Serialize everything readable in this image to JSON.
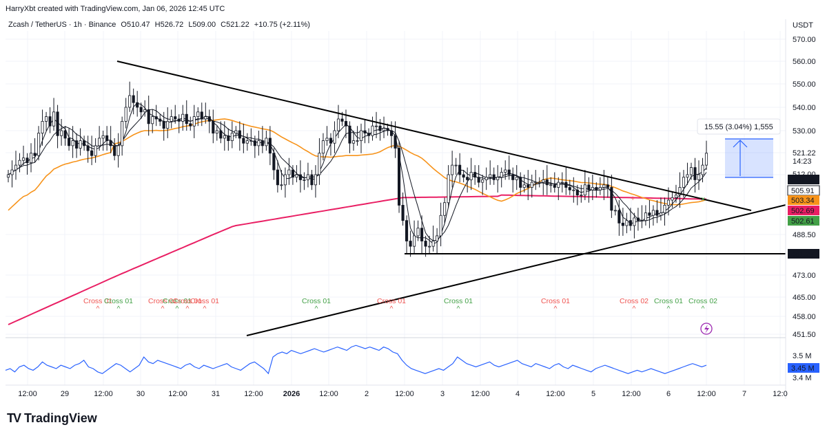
{
  "header": {
    "credit": "HarryXbt created with TradingView.com, Jan 06, 2026 12:45 UTC",
    "symbol": "Zcash / TetherUS · 1h · Binance",
    "open": "O510.47",
    "high": "H526.72",
    "low": "L509.00",
    "close": "C521.22",
    "change": "+10.75 (+2.11%)"
  },
  "brand": {
    "name": "TradingView",
    "logo": "TV"
  },
  "colors": {
    "up": "#131722",
    "down": "#131722",
    "ma_fast": "#131722",
    "ma_mid": "#f7931a",
    "ma_slow": "#e91e63",
    "volume": "#2962ff",
    "cross_down": "#ef5350",
    "cross_up": "#43a047",
    "measure": "#2962ff"
  },
  "chart_data": {
    "type": "candlestick",
    "currency_label": "USDT",
    "y_ticks": [
      "570.00",
      "560.00",
      "550.00",
      "540.00",
      "530.00",
      "521.22",
      "512.00",
      "488.50",
      "473.00",
      "465.00",
      "458.00",
      "451.50"
    ],
    "ylim": [
      450,
      574
    ],
    "x_ticks": [
      "12:00",
      "29",
      "12:00",
      "30",
      "12:00",
      "31",
      "12:00",
      "2026",
      "12:00",
      "2",
      "12:00",
      "3",
      "12:00",
      "4",
      "12:00",
      "5",
      "12:00",
      "6",
      "12:00",
      "7",
      "12:0"
    ],
    "price_labels": [
      {
        "value": "510.04",
        "color": "#131722"
      },
      {
        "value": "505.91",
        "color": "#ffffff"
      },
      {
        "value": "503.34",
        "color": "#f7931a"
      },
      {
        "value": "502.69",
        "color": "#e91e63"
      },
      {
        "value": "502.61",
        "color": "#43a047"
      }
    ],
    "countdown": "14:23",
    "horizontal_level": "481.27",
    "measure_label": "15.55 (3.04%) 1,555",
    "cross_labels": [
      {
        "text": "Cross 01",
        "color": "down"
      },
      {
        "text": "Cross 01",
        "color": "up"
      },
      {
        "text": "Cross 01",
        "color": "down"
      },
      {
        "text": "Cross 01",
        "color": "up"
      },
      {
        "text": "Cross 01",
        "color": "down"
      },
      {
        "text": "Cross 01",
        "color": "down"
      },
      {
        "text": "Cross 01",
        "color": "up"
      },
      {
        "text": "Cross 01",
        "color": "down"
      },
      {
        "text": "Cross 01",
        "color": "up"
      },
      {
        "text": "Cross 01",
        "color": "down"
      },
      {
        "text": "Cross 02",
        "color": "down"
      },
      {
        "text": "Cross 01",
        "color": "up"
      },
      {
        "text": "Cross 02",
        "color": "up"
      }
    ],
    "close_series": [
      512,
      514,
      516,
      518,
      519,
      517,
      521,
      520,
      529,
      534,
      536,
      532,
      538,
      528,
      530,
      527,
      524,
      526,
      523,
      526,
      524,
      522,
      520,
      524,
      527,
      528,
      526,
      524,
      520,
      524,
      534,
      540,
      545,
      542,
      540,
      538,
      539,
      533,
      536,
      535,
      534,
      531,
      534,
      536,
      535,
      534,
      537,
      533,
      532,
      536,
      538,
      535,
      536,
      534,
      529,
      530,
      527,
      528,
      526,
      529,
      530,
      527,
      525,
      526,
      526,
      524,
      526,
      524,
      527,
      521,
      514,
      508,
      508,
      512,
      514,
      511,
      512,
      510,
      510,
      512,
      508,
      512,
      521,
      526,
      527,
      525,
      530,
      535,
      534,
      532,
      525,
      526,
      526,
      530,
      529,
      528,
      532,
      532,
      530,
      531,
      530,
      528,
      523,
      500,
      494,
      486,
      484,
      488,
      491,
      486,
      484,
      484,
      486,
      488,
      496,
      501,
      512,
      516,
      516,
      512,
      511,
      510,
      513,
      511,
      509,
      510,
      511,
      512,
      510,
      511,
      513,
      514,
      512,
      510,
      511,
      507,
      508,
      507,
      509,
      509,
      509,
      510,
      508,
      508,
      507,
      509,
      509,
      507,
      506,
      506,
      504,
      504,
      508,
      506,
      507,
      506,
      507,
      508,
      507,
      498,
      498,
      493,
      492,
      494,
      492,
      495,
      494,
      494,
      497,
      496,
      498,
      496,
      497,
      500,
      502,
      503,
      504,
      507,
      511,
      512,
      515,
      510,
      512,
      516,
      521
    ],
    "volume_series": [
      3.42,
      3.43,
      3.41,
      3.44,
      3.45,
      3.43,
      3.42,
      3.44,
      3.47,
      3.45,
      3.44,
      3.43,
      3.45,
      3.44,
      3.43,
      3.45,
      3.46,
      3.48,
      3.44,
      3.43,
      3.41,
      3.4,
      3.42,
      3.44,
      3.46,
      3.45,
      3.43,
      3.41,
      3.43,
      3.45,
      3.5,
      3.47,
      3.46,
      3.48,
      3.47,
      3.46,
      3.45,
      3.44,
      3.43,
      3.45,
      3.46,
      3.44,
      3.43,
      3.45,
      3.44,
      3.43,
      3.44,
      3.45,
      3.46,
      3.44,
      3.43,
      3.42,
      3.44,
      3.46,
      3.47,
      3.45,
      3.43,
      3.4,
      3.5,
      3.52,
      3.53,
      3.52,
      3.54,
      3.53,
      3.52,
      3.53,
      3.54,
      3.55,
      3.54,
      3.53,
      3.54,
      3.55,
      3.56,
      3.55,
      3.54,
      3.56,
      3.57,
      3.56,
      3.55,
      3.56,
      3.55,
      3.54,
      3.56,
      3.55,
      3.53,
      3.52,
      3.48,
      3.45,
      3.43,
      3.42,
      3.41,
      3.4,
      3.41,
      3.42,
      3.43,
      3.42,
      3.44,
      3.46,
      3.5,
      3.48,
      3.46,
      3.45,
      3.44,
      3.45,
      3.46,
      3.47,
      3.45,
      3.44,
      3.45,
      3.46,
      3.47,
      3.48,
      3.46,
      3.45,
      3.44,
      3.46,
      3.45,
      3.44,
      3.43,
      3.45,
      3.46,
      3.44,
      3.43,
      3.45,
      3.44,
      3.43,
      3.42,
      3.41,
      3.43,
      3.44,
      3.45,
      3.44,
      3.43,
      3.42,
      3.41,
      3.4,
      3.41,
      3.42,
      3.41,
      3.42,
      3.43,
      3.42,
      3.41,
      3.4,
      3.41,
      3.42,
      3.43,
      3.44,
      3.45,
      3.46,
      3.45,
      3.44,
      3.45
    ],
    "volume_ticks": [
      "3.5 M",
      "3.4 M"
    ],
    "volume_current": "3.45 M"
  },
  "trendlines": {
    "description_free": true
  }
}
